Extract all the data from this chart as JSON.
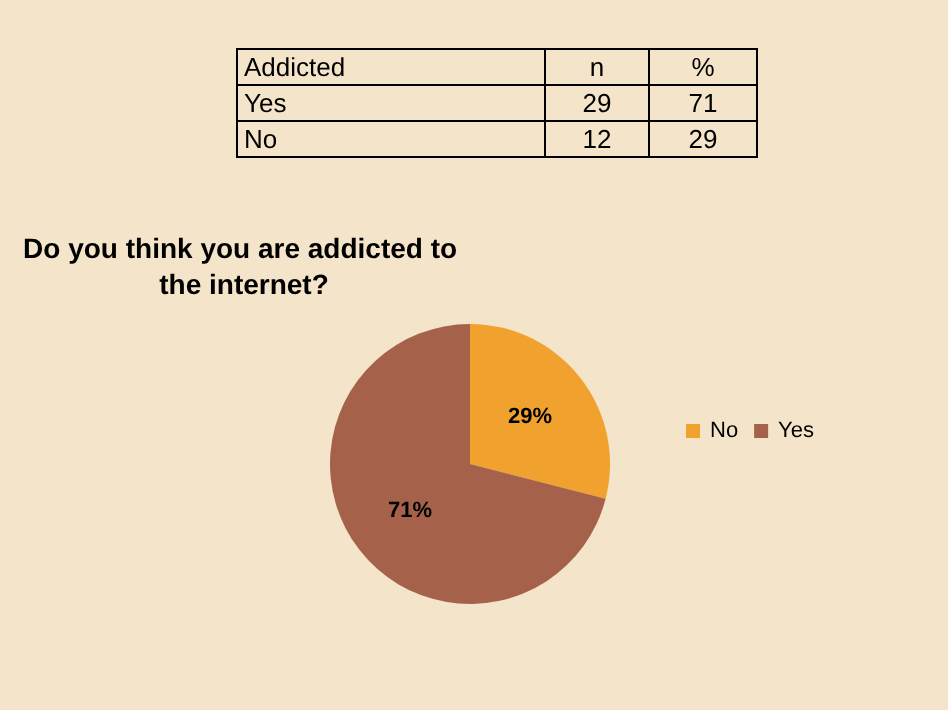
{
  "chart_data": [
    {
      "type": "other",
      "annotations": [
        "Addicted",
        "n",
        "%",
        "Yes",
        "29",
        "71",
        "No",
        "12",
        "29"
      ]
    },
    {
      "type": "pie",
      "title": "Do you think you are addicted to the internet?",
      "categories": [
        "No",
        "Yes"
      ],
      "values": [
        29,
        71
      ],
      "colors": [
        "#f0a12e",
        "#a6614b"
      ],
      "legend": "right",
      "value_labels": [
        "29%",
        "71%"
      ]
    }
  ]
}
